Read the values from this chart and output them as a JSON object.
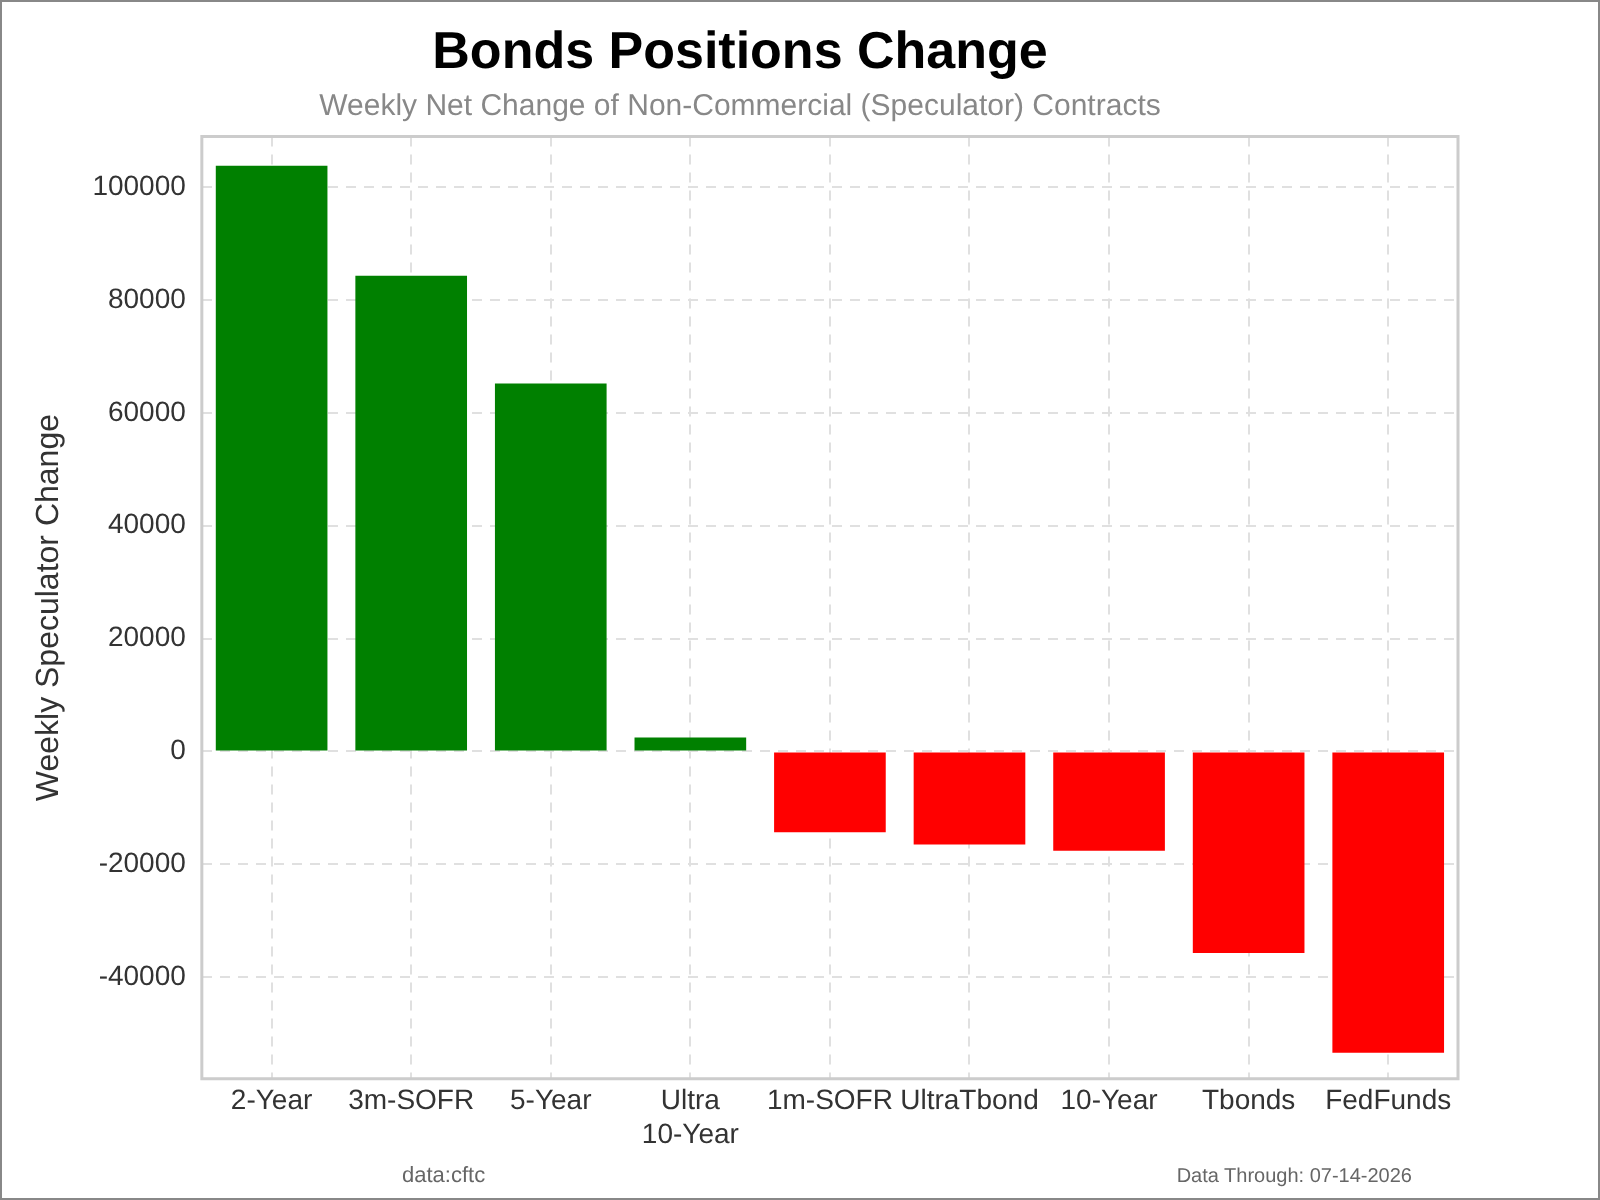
{
  "chart_data": {
    "type": "bar",
    "title": "Bonds Positions Change",
    "subtitle": "Weekly Net Change of Non-Commercial (Speculator) Contracts",
    "ylabel": "Weekly Speculator Change",
    "categories": [
      "2-Year",
      "3m-SOFR",
      "5-Year",
      "Ultra 10-Year",
      "1m-SOFR",
      "UltraTbond",
      "10-Year",
      "Tbonds",
      "FedFunds"
    ],
    "values": [
      103800,
      84300,
      65200,
      2500,
      -14300,
      -16500,
      -17600,
      -35700,
      -53400
    ],
    "colors": [
      "#008000",
      "#008000",
      "#008000",
      "#008000",
      "#ff0000",
      "#ff0000",
      "#ff0000",
      "#ff0000",
      "#ff0000"
    ],
    "ylim": [
      -58000,
      109000
    ],
    "yticks": [
      -40000,
      -20000,
      0,
      20000,
      40000,
      60000,
      80000,
      100000
    ],
    "grid": true,
    "annotations": [
      "data:cftc",
      "Data Through: 07-14-2026"
    ]
  }
}
